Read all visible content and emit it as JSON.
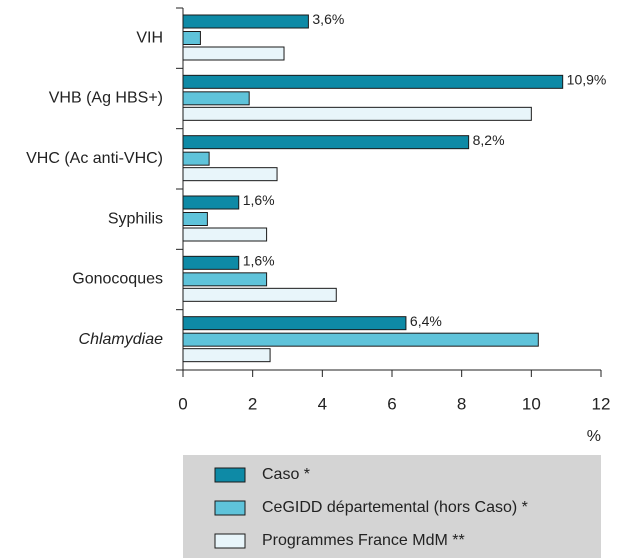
{
  "chart_data": {
    "type": "barh",
    "categories": [
      "VIH",
      "VHB (Ag HBS+)",
      "VHC (Ac anti-VHC)",
      "Syphilis",
      "Gonocoques",
      "Chlamydiae"
    ],
    "series": [
      {
        "name": "Caso *",
        "color": "#0e8aa6",
        "values": [
          3.6,
          10.9,
          8.2,
          1.6,
          1.6,
          6.4
        ],
        "value_labels": [
          "3,6%",
          "10,9%",
          "8,2%",
          "1,6%",
          "1,6%",
          "6,4%"
        ]
      },
      {
        "name": "CeGIDD départemental (hors Caso) *",
        "color": "#5fc3da",
        "values": [
          0.5,
          1.9,
          0.75,
          0.7,
          2.4,
          10.2
        ]
      },
      {
        "name": "Programmes France MdM **",
        "color": "#e8f5fa",
        "values": [
          2.9,
          10.0,
          2.7,
          2.4,
          4.4,
          2.5
        ]
      }
    ],
    "xlabel": "%",
    "xlim": [
      0,
      12
    ],
    "xticks": [
      0,
      2,
      4,
      6,
      8,
      10,
      12
    ]
  }
}
